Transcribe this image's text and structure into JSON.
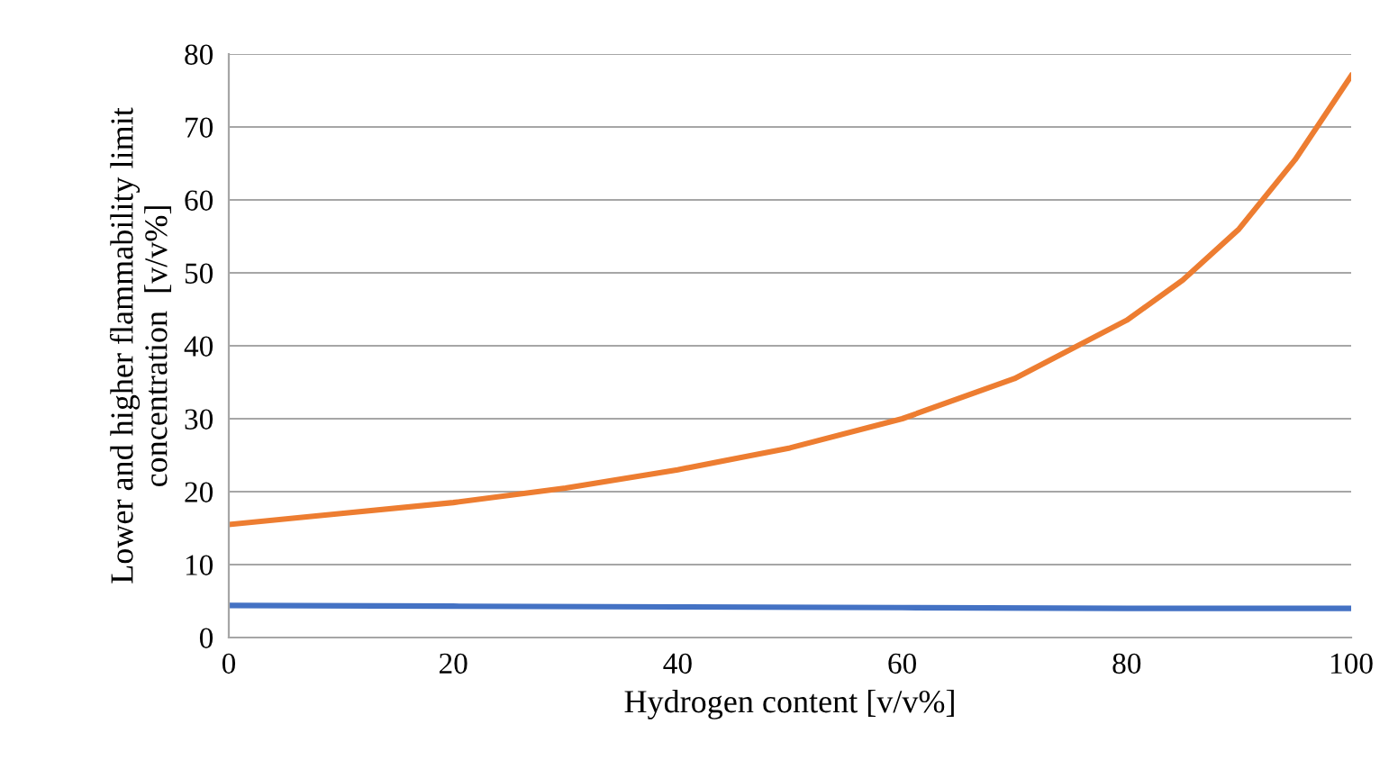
{
  "chart_data": {
    "type": "line",
    "xlabel": "Hydrogen content [v/v%]",
    "ylabel": "Lower and higher flammability limit\nconcentration  [v/v%]",
    "xlim": [
      0,
      100
    ],
    "xticks": [
      0,
      20,
      40,
      60,
      80,
      100
    ],
    "ylim": [
      0,
      80
    ],
    "yticks": [
      0,
      10,
      20,
      30,
      40,
      50,
      60,
      70,
      80
    ],
    "grid": "y",
    "legend": false,
    "marker": "none",
    "line_style": "solid",
    "series": [
      {
        "color": "#4472c4",
        "x": [
          0,
          20,
          40,
          60,
          80,
          100
        ],
        "values": [
          4.4,
          4.3,
          4.2,
          4.1,
          4.0,
          4.0
        ]
      },
      {
        "color": "#ed7d31",
        "x": [
          0,
          10,
          20,
          30,
          40,
          50,
          60,
          70,
          80,
          85,
          90,
          95,
          100
        ],
        "values": [
          15.5,
          17,
          18.5,
          20.5,
          23,
          26,
          30,
          35.5,
          43.5,
          49,
          56,
          65.5,
          77
        ]
      }
    ]
  }
}
